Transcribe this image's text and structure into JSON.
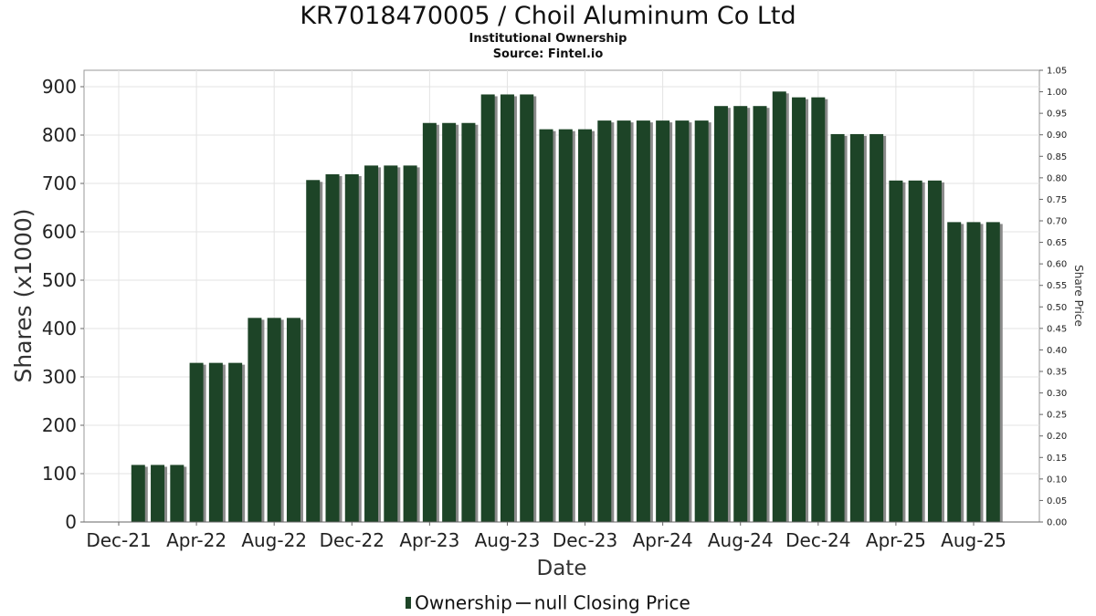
{
  "title": "KR7018470005 / Choil Aluminum Co Ltd",
  "subtitle": "Institutional Ownership",
  "source": "Source: Fintel.io",
  "colors": {
    "bar": "#1d4427",
    "shadow": "#8a8a8a",
    "grid": "#e3e3e3"
  },
  "legend": {
    "ownership": "Ownership",
    "price": "null Closing Price"
  },
  "chart_data": {
    "type": "bar",
    "title": "KR7018470005 / Choil Aluminum Co Ltd",
    "xlabel": "Date",
    "ylabel": "Shares (x1000)",
    "y2label": "Share Price",
    "ylim": [
      0,
      900
    ],
    "y2lim": [
      0,
      1.05
    ],
    "grid": true,
    "legend_position": "bottom",
    "x_tick_labels": [
      "Dec-21",
      "Apr-22",
      "Aug-22",
      "Dec-22",
      "Apr-23",
      "Aug-23",
      "Dec-23",
      "Apr-24",
      "Aug-24",
      "Dec-24",
      "Apr-25",
      "Aug-25"
    ],
    "y_ticks": [
      0,
      100,
      200,
      300,
      400,
      500,
      600,
      700,
      800,
      900
    ],
    "y2_ticks": [
      "0.00",
      "0.05",
      "0.10",
      "0.15",
      "0.20",
      "0.25",
      "0.30",
      "0.35",
      "0.40",
      "0.45",
      "0.50",
      "0.55",
      "0.60",
      "0.65",
      "0.70",
      "0.75",
      "0.80",
      "0.85",
      "0.90",
      "0.95",
      "1.00",
      "1.05"
    ],
    "series": [
      {
        "name": "Ownership",
        "x": [
          "2022-01",
          "2022-02",
          "2022-03",
          "2022-04",
          "2022-05",
          "2022-06",
          "2022-07",
          "2022-08",
          "2022-09",
          "2022-10",
          "2022-11",
          "2022-12",
          "2023-01",
          "2023-02",
          "2023-03",
          "2023-04",
          "2023-05",
          "2023-06",
          "2023-07",
          "2023-08",
          "2023-09",
          "2023-10",
          "2023-11",
          "2023-12",
          "2024-01",
          "2024-02",
          "2024-03",
          "2024-04",
          "2024-05",
          "2024-06",
          "2024-07",
          "2024-08",
          "2024-09",
          "2024-10",
          "2024-11",
          "2024-12",
          "2025-01",
          "2025-02",
          "2025-03",
          "2025-04",
          "2025-05",
          "2025-06",
          "2025-07",
          "2025-08",
          "2025-09"
        ],
        "values": [
          118,
          118,
          118,
          329,
          329,
          329,
          422,
          422,
          422,
          707,
          719,
          719,
          737,
          737,
          737,
          825,
          825,
          825,
          884,
          884,
          884,
          812,
          812,
          812,
          830,
          830,
          830,
          830,
          830,
          830,
          860,
          860,
          860,
          890,
          878,
          878,
          802,
          802,
          802,
          706,
          706,
          706,
          620,
          620,
          620
        ]
      }
    ]
  }
}
